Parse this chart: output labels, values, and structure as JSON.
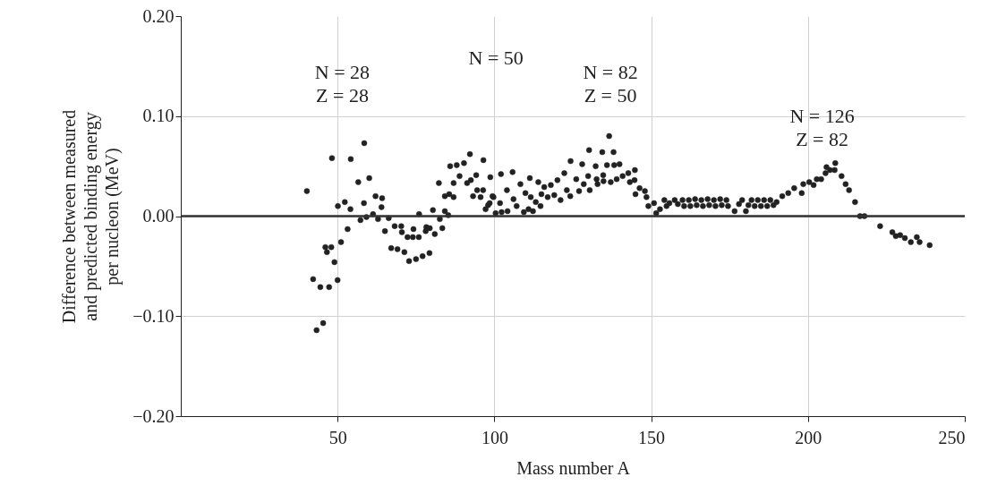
{
  "chart_data": {
    "type": "scatter",
    "xlabel": "Mass number A",
    "ylabel": "Difference between measured\nand predicted binding energy\nper nucleon (MeV)",
    "xlim": [
      0,
      250
    ],
    "xticks": [
      50,
      100,
      150,
      200,
      250
    ],
    "ylim": [
      -0.2,
      0.2
    ],
    "yticks": [
      {
        "value": -0.2,
        "label": "−0.20"
      },
      {
        "value": -0.1,
        "label": "−0.10"
      },
      {
        "value": 0,
        "label": "0.00"
      },
      {
        "value": 0.1,
        "label": "0.10"
      },
      {
        "value": 0.2,
        "label": "0.20"
      }
    ],
    "grid": true,
    "marker": "circle",
    "ref_lines": [
      {
        "axis": "y",
        "value": 0,
        "color": "#333333"
      }
    ],
    "annotations": [
      "N = 28\nZ = 28",
      "N = 50",
      "N = 82\nZ = 50",
      "N = 126\nZ = 82"
    ],
    "series": [
      {
        "color": "#222222",
        "x": [
          40.2,
          48.2,
          54.2,
          58.5,
          56.6,
          60.1,
          50.1,
          52.3,
          54.1,
          58.4,
          62.1,
          64.2,
          64,
          61.3,
          59.2,
          57.3,
          62.9,
          66.3,
          53.2,
          51.1,
          46.1,
          48,
          46.6,
          49,
          42.2,
          44.5,
          47.3,
          50,
          45.4,
          43.3,
          65.1,
          68.2,
          70.3,
          70.5,
          72.3,
          74,
          75.9,
          74.2,
          76,
          67.1,
          69.1,
          71.3,
          72.8,
          75,
          77.1,
          79.3,
          78.3,
          79.4,
          78.1,
          81,
          80.4,
          82.6,
          83.4,
          84.2,
          85.3,
          82.3,
          84.2,
          85.6,
          87,
          85.9,
          88,
          90.3,
          92.2,
          87,
          88.9,
          91.3,
          92.5,
          94.2,
          96.5,
          98.7,
          93.2,
          94.5,
          96.4,
          95.6,
          97.2,
          98.5,
          99.7,
          102.1,
          105.8,
          104,
          108.3,
          111.3,
          106.1,
          101.8,
          98,
          99.4,
          100.4,
          102.3,
          104.2,
          107.1,
          109.4,
          110.9,
          112.3,
          109.9,
          111.6,
          113.2,
          114.7,
          114,
          115.9,
          118,
          120.1,
          122.3,
          115,
          117,
          119.1,
          121.1,
          123.1,
          124.3,
          128,
          130.2,
          132.3,
          134.4,
          136.6,
          138,
          126.1,
          128.5,
          130.4,
          124.2,
          127,
          129.9,
          132.6,
          134.7,
          135.9,
          138.2,
          139.9,
          132.9,
          134.8,
          137.1,
          139,
          140.9,
          142.7,
          144.8,
          143.2,
          144.7,
          146.3,
          148,
          145,
          148.5,
          149.1,
          150.9,
          151.6,
          152.8,
          154.2,
          154.9,
          155.8,
          157.5,
          158.5,
          160,
          160.5,
          162,
          162.5,
          164,
          164.5,
          166,
          166.5,
          168,
          168.5,
          170,
          170.5,
          172,
          172.5,
          174,
          174.5,
          176.6,
          178,
          179,
          180.2,
          181,
          182,
          183,
          184,
          185,
          186,
          187,
          188,
          189,
          190,
          191.8,
          193.7,
          195.6,
          198,
          198.5,
          200.4,
          201.8,
          202.8,
          204.2,
          205.6,
          205.9,
          207,
          208.7,
          208.5,
          210.7,
          212,
          213.1,
          215,
          216.6,
          218,
          223,
          226.9,
          228,
          229.4,
          230.9,
          232.8,
          234.7,
          235.6,
          238.8
        ],
        "values": [
          0.025,
          0.058,
          0.057,
          0.073,
          0.034,
          0.038,
          0.01,
          0.014,
          0.007,
          0.013,
          0.02,
          0.018,
          0.009,
          0.002,
          -0.001,
          -0.004,
          -0.003,
          -0.002,
          -0.013,
          -0.026,
          -0.031,
          -0.031,
          -0.036,
          -0.046,
          -0.063,
          -0.071,
          -0.071,
          -0.064,
          -0.107,
          -0.114,
          -0.015,
          -0.01,
          -0.01,
          -0.016,
          -0.021,
          -0.021,
          -0.021,
          -0.013,
          0.002,
          -0.032,
          -0.033,
          -0.036,
          -0.045,
          -0.043,
          -0.04,
          -0.037,
          -0.011,
          -0.012,
          -0.015,
          -0.018,
          0.006,
          -0.003,
          -0.012,
          0.005,
          0.001,
          0.033,
          0.02,
          0.022,
          0.019,
          0.05,
          0.051,
          0.053,
          0.062,
          0.033,
          0.04,
          0.033,
          0.036,
          0.041,
          0.056,
          0.039,
          0.02,
          0.026,
          0.026,
          0.019,
          0.007,
          0.013,
          0.019,
          0.042,
          0.044,
          0.026,
          0.032,
          0.038,
          0.017,
          0.013,
          0.011,
          0.02,
          0.003,
          0.004,
          0.005,
          0.01,
          0.004,
          0.007,
          0.005,
          0.023,
          0.019,
          0.014,
          0.01,
          0.034,
          0.029,
          0.031,
          0.036,
          0.043,
          0.022,
          0.019,
          0.021,
          0.016,
          0.026,
          0.055,
          0.052,
          0.066,
          0.05,
          0.064,
          0.08,
          0.064,
          0.037,
          0.032,
          0.026,
          0.02,
          0.025,
          0.04,
          0.037,
          0.041,
          0.051,
          0.051,
          0.052,
          0.032,
          0.035,
          0.034,
          0.037,
          0.04,
          0.043,
          0.046,
          0.034,
          0.036,
          0.028,
          0.025,
          0.022,
          0.019,
          0.01,
          0.013,
          0.003,
          0.007,
          0.016,
          0.01,
          0.013,
          0.016,
          0.012,
          0.016,
          0.01,
          0.016,
          0.01,
          0.017,
          0.011,
          0.016,
          0.01,
          0.017,
          0.011,
          0.016,
          0.01,
          0.017,
          0.011,
          0.016,
          0.01,
          0.005,
          0.012,
          0.016,
          0.005,
          0.011,
          0.016,
          0.01,
          0.016,
          0.01,
          0.016,
          0.01,
          0.016,
          0.011,
          0.014,
          0.02,
          0.023,
          0.028,
          0.023,
          0.032,
          0.034,
          0.031,
          0.037,
          0.037,
          0.043,
          0.049,
          0.046,
          0.053,
          0.046,
          0.04,
          0.032,
          0.026,
          0.014,
          0,
          0,
          -0.01,
          -0.016,
          -0.02,
          -0.019,
          -0.022,
          -0.026,
          -0.021,
          -0.026,
          -0.029
        ]
      }
    ]
  }
}
